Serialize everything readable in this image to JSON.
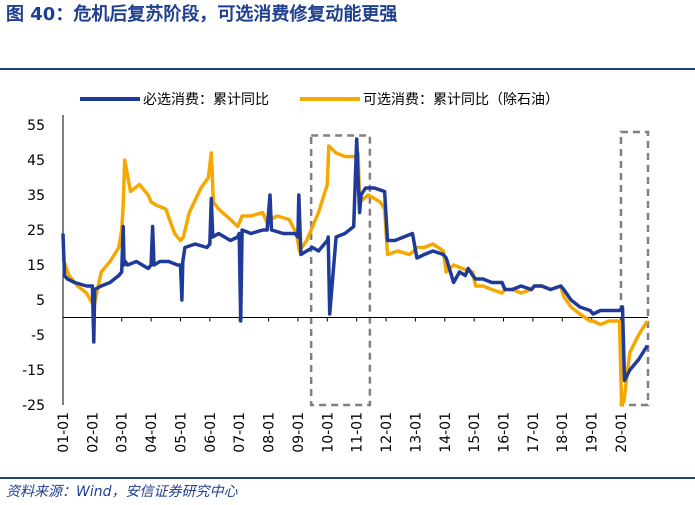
{
  "figure": {
    "title": "图 40：危机后复苏阶段，可选消费修复动能更强",
    "source": "资料来源：Wind，安信证券研究中心"
  },
  "chart_data": {
    "type": "line",
    "title": "",
    "xlabel": "",
    "ylabel": "",
    "ylim": [
      -25,
      55
    ],
    "y_ticks": [
      55,
      45,
      35,
      25,
      15,
      5,
      -5,
      -15,
      -25
    ],
    "x_tick_labels": [
      "01-01",
      "02-01",
      "03-01",
      "04-01",
      "05-01",
      "06-01",
      "07-01",
      "08-01",
      "09-01",
      "10-01",
      "11-01",
      "12-01",
      "13-01",
      "14-01",
      "15-01",
      "16-01",
      "17-01",
      "18-01",
      "19-01",
      "20-01"
    ],
    "x_range": [
      2001.0,
      2020.92
    ],
    "legend_position": "top",
    "colors": {
      "necessity": "#1f3b9a",
      "discretionary": "#f5a800",
      "highlight_box": "#808080"
    },
    "highlight_periods": [
      {
        "x": [
          2009.45,
          2011.45
        ],
        "y": [
          -25,
          52
        ]
      },
      {
        "x": [
          2020.0,
          2020.92
        ],
        "y": [
          -25,
          53
        ]
      }
    ],
    "series": [
      {
        "name": "必选消费：累计同比",
        "x": [
          2001.0,
          2001.05,
          2001.15,
          2001.4,
          2001.8,
          2002.0,
          2002.05,
          2002.08,
          2002.3,
          2002.6,
          2002.9,
          2003.0,
          2003.05,
          2003.08,
          2003.12,
          2003.2,
          2003.5,
          2003.9,
          2004.0,
          2004.05,
          2004.1,
          2004.3,
          2004.6,
          2004.9,
          2005.0,
          2005.05,
          2005.08,
          2005.15,
          2005.5,
          2005.9,
          2006.0,
          2006.05,
          2006.1,
          2006.3,
          2006.7,
          2006.95,
          2007.0,
          2007.05,
          2007.1,
          2007.4,
          2007.8,
          2007.95,
          2008.05,
          2008.1,
          2008.5,
          2008.9,
          2009.0,
          2009.03,
          2009.1,
          2009.3,
          2009.5,
          2009.7,
          2010.0,
          2010.03,
          2010.08,
          2010.3,
          2010.6,
          2010.9,
          2011.0,
          2011.05,
          2011.1,
          2011.15,
          2011.3,
          2011.6,
          2011.95,
          2012.05,
          2012.3,
          2012.6,
          2012.9,
          2013.05,
          2013.3,
          2013.6,
          2013.95,
          2014.05,
          2014.3,
          2014.5,
          2014.7,
          2014.8,
          2014.95,
          2015.05,
          2015.3,
          2015.6,
          2015.95,
          2016.05,
          2016.3,
          2016.6,
          2016.95,
          2017.05,
          2017.3,
          2017.6,
          2017.95,
          2018.05,
          2018.3,
          2018.6,
          2018.95,
          2019.05,
          2019.3,
          2019.6,
          2019.95,
          2020.05,
          2020.12,
          2020.3,
          2020.6,
          2020.9
        ],
        "values": [
          24,
          12,
          11,
          10,
          9,
          9,
          -7,
          8,
          9,
          10,
          12,
          13,
          26,
          15,
          16,
          15,
          16,
          14,
          15,
          26,
          15,
          16,
          16,
          15,
          15,
          5,
          16,
          20,
          21,
          20,
          21,
          34,
          23,
          24,
          22,
          23,
          24,
          -1,
          25,
          24,
          25,
          25,
          35,
          25,
          24,
          24,
          23,
          35,
          18,
          19,
          20,
          19,
          22,
          23,
          1,
          23,
          24,
          26,
          51,
          40,
          30,
          35,
          37,
          37,
          36,
          22,
          22,
          23,
          24,
          17,
          18,
          19,
          18,
          17,
          10,
          13,
          12,
          14,
          12,
          11,
          11,
          10,
          10,
          8,
          8,
          9,
          8,
          9,
          9,
          8,
          9,
          8,
          5,
          3,
          2,
          1,
          2,
          2,
          2,
          3,
          -18,
          -15,
          -12,
          -8
        ]
      },
      {
        "name": "可选消费：累计同比（除石油）",
        "x": [
          2001.0,
          2001.2,
          2001.5,
          2001.8,
          2002.0,
          2002.05,
          2002.3,
          2002.6,
          2002.9,
          2003.0,
          2003.05,
          2003.1,
          2003.3,
          2003.6,
          2003.9,
          2004.0,
          2004.2,
          2004.5,
          2004.8,
          2005.0,
          2005.1,
          2005.3,
          2005.7,
          2005.95,
          2006.05,
          2006.12,
          2006.3,
          2006.7,
          2006.95,
          2007.05,
          2007.1,
          2007.4,
          2007.8,
          2007.95,
          2008.05,
          2008.3,
          2008.7,
          2008.95,
          2009.05,
          2009.3,
          2009.7,
          2010.0,
          2010.05,
          2010.3,
          2010.6,
          2010.95,
          2011.05,
          2011.1,
          2011.4,
          2011.8,
          2011.95,
          2012.05,
          2012.4,
          2012.8,
          2012.95,
          2013.05,
          2013.3,
          2013.6,
          2013.95,
          2014.05,
          2014.3,
          2014.6,
          2014.95,
          2015.05,
          2015.3,
          2015.6,
          2015.95,
          2016.05,
          2016.3,
          2016.6,
          2016.95,
          2017.05,
          2017.3,
          2017.6,
          2017.95,
          2018.05,
          2018.3,
          2018.6,
          2018.95,
          2019.05,
          2019.3,
          2019.6,
          2019.95,
          2020.02,
          2020.1,
          2020.3,
          2020.6,
          2020.9
        ],
        "values": [
          17,
          12,
          9,
          7,
          4,
          3,
          13,
          16,
          20,
          25,
          32,
          45,
          36,
          38,
          35,
          33,
          32,
          31,
          24,
          22,
          23,
          30,
          37,
          40,
          47,
          33,
          31,
          28,
          26,
          28,
          29,
          29,
          30,
          27,
          28,
          29,
          28,
          24,
          19,
          22,
          30,
          38,
          49,
          47,
          46,
          46,
          47,
          33,
          35,
          33,
          31,
          18,
          19,
          18,
          19,
          20,
          20,
          21,
          19,
          13,
          15,
          14,
          13,
          9,
          9,
          8,
          7,
          8,
          8,
          7,
          8,
          9,
          9,
          8,
          9,
          6,
          3,
          1,
          -1,
          -1,
          -2,
          -1,
          -1,
          -25,
          -24,
          -10,
          -5,
          -1
        ]
      }
    ]
  }
}
